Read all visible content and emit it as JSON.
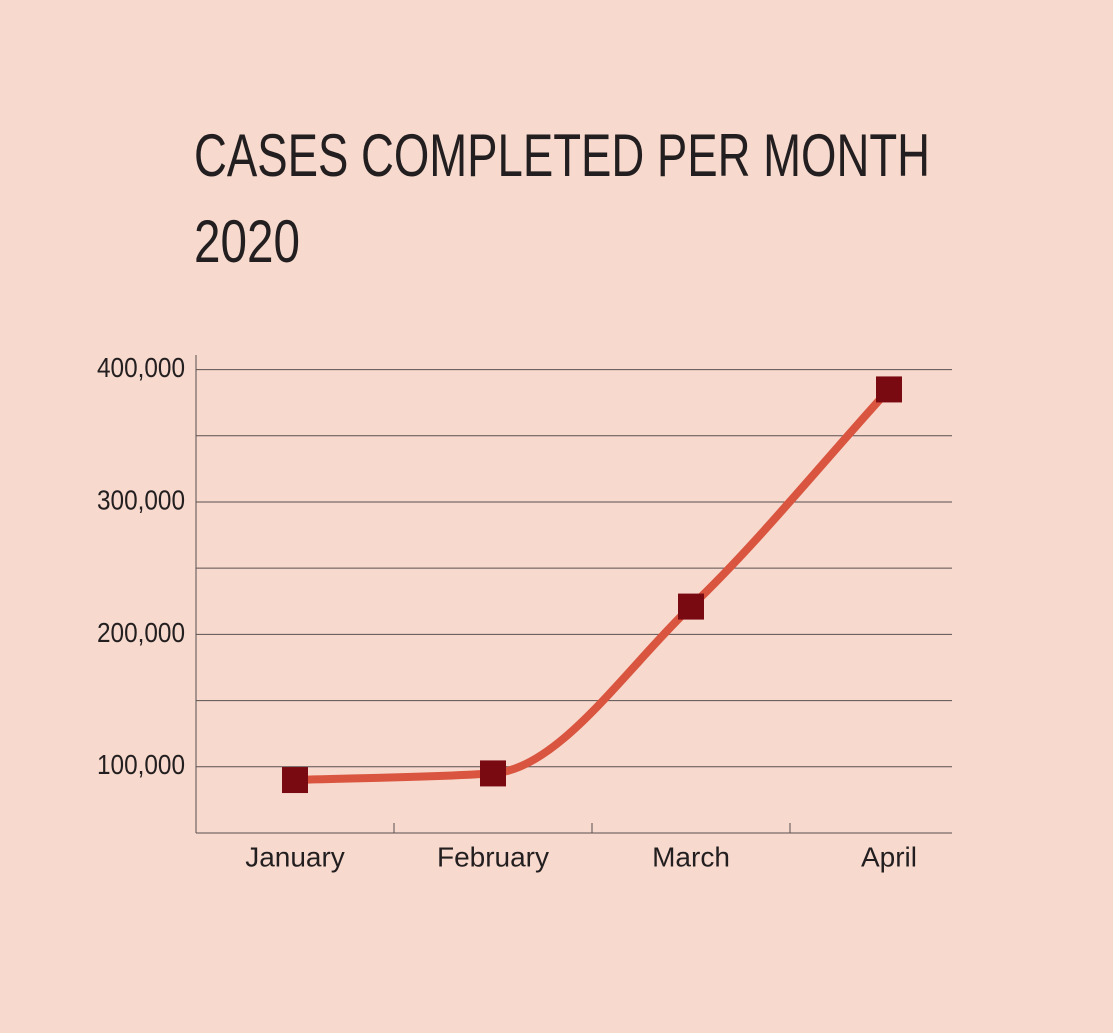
{
  "chart_data": {
    "type": "line",
    "title": "CASES COMPLETED PER MONTH",
    "subtitle": "2020",
    "categories": [
      "January",
      "February",
      "March",
      "April"
    ],
    "series": [
      {
        "name": "Cases completed",
        "color": "#d9553f",
        "marker_color": "#7a0a12",
        "values": [
          90000,
          95000,
          221000,
          385000
        ]
      }
    ],
    "ylim": [
      50000,
      411000
    ],
    "yticks": [
      {
        "value": 100000,
        "label": "100,000"
      },
      {
        "value": 200000,
        "label": "200,000"
      },
      {
        "value": 300000,
        "label": "300,000"
      },
      {
        "value": 400000,
        "label": "400,000"
      }
    ],
    "minor_yticks": [
      150000,
      250000,
      350000
    ],
    "grid": true,
    "smooth": true
  }
}
